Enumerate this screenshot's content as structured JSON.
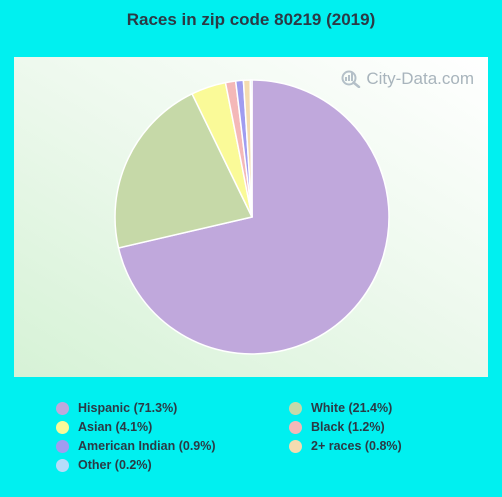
{
  "chart_data": {
    "type": "pie",
    "title": "Races in zip code 80219 (2019)",
    "watermark": "City-Data.com",
    "slices": [
      {
        "label": "Hispanic",
        "value": 71.3,
        "legend": "Hispanic (71.3%)",
        "color": "#c0a8dc"
      },
      {
        "label": "White",
        "value": 21.4,
        "legend": "White (21.4%)",
        "color": "#c6d9a8"
      },
      {
        "label": "Asian",
        "value": 4.1,
        "legend": "Asian (4.1%)",
        "color": "#fafa98"
      },
      {
        "label": "Black",
        "value": 1.2,
        "legend": "Black (1.2%)",
        "color": "#f4b8b8"
      },
      {
        "label": "American Indian",
        "value": 0.9,
        "legend": "American Indian (0.9%)",
        "color": "#a09cf0"
      },
      {
        "label": "2+ races",
        "value": 0.8,
        "legend": "2+ races (0.8%)",
        "color": "#f4dcb0"
      },
      {
        "label": "Other",
        "value": 0.2,
        "legend": "Other (0.2%)",
        "color": "#b8dcfa"
      }
    ],
    "legend_order": [
      "Hispanic",
      "White",
      "Asian",
      "Black",
      "American Indian",
      "2+ races",
      "Other"
    ],
    "legend_placement": "bottom"
  },
  "colors": {
    "background": "#00f0f0",
    "title_text": "#2b3a45",
    "watermark": "#a8b4bc"
  }
}
